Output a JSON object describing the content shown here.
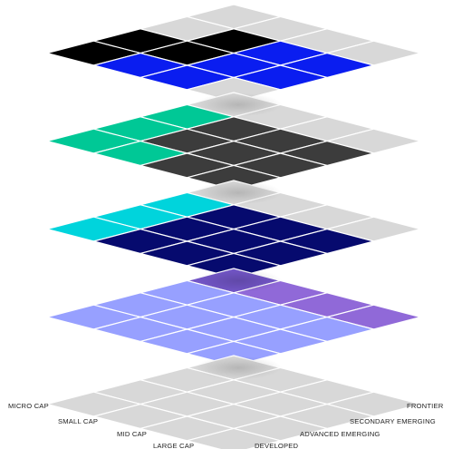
{
  "diagram": {
    "cap_labels": [
      "MICRO CAP",
      "SMALL CAP",
      "MID CAP",
      "LARGE CAP"
    ],
    "market_labels": [
      "DEVELOPED",
      "ADVANCED EMERGING",
      "SECONDARY EMERGING",
      "FRONTIER"
    ]
  },
  "colors": {
    "grey": "#d8d8d8",
    "black": "#000000",
    "blue": "#0a1df0",
    "green": "#00c896",
    "dark_grey": "#3c3c3c",
    "navy": "#060a6e",
    "cyan": "#00d4dc",
    "periwinkle": "#97a0ff",
    "violet": "#7356c8",
    "lavender": "#9069d8",
    "grid_line": "#ffffff"
  },
  "layers": [
    {
      "name": "layer-1",
      "rows": [
        [
          "grey",
          "grey",
          "grey",
          "grey"
        ],
        [
          "grey",
          "black",
          "blue",
          "blue"
        ],
        [
          "black",
          "black",
          "blue",
          "blue"
        ],
        [
          "black",
          "blue",
          "blue",
          "grey"
        ]
      ]
    },
    {
      "name": "layer-2",
      "rows": [
        [
          "grey",
          "grey",
          "grey",
          "grey"
        ],
        [
          "green",
          "dark_grey",
          "dark_grey",
          "dark_grey"
        ],
        [
          "green",
          "dark_grey",
          "dark_grey",
          "dark_grey"
        ],
        [
          "green",
          "green",
          "dark_grey",
          "dark_grey"
        ]
      ]
    },
    {
      "name": "layer-3",
      "rows": [
        [
          "grey",
          "grey",
          "grey",
          "grey"
        ],
        [
          "cyan",
          "navy",
          "navy",
          "navy"
        ],
        [
          "cyan",
          "navy",
          "navy",
          "navy"
        ],
        [
          "cyan",
          "navy",
          "navy",
          "navy"
        ]
      ]
    },
    {
      "name": "layer-4",
      "rows": [
        [
          "violet",
          "lavender",
          "lavender",
          "lavender"
        ],
        [
          "periwinkle",
          "periwinkle",
          "periwinkle",
          "periwinkle"
        ],
        [
          "periwinkle",
          "periwinkle",
          "periwinkle",
          "periwinkle"
        ],
        [
          "periwinkle",
          "periwinkle",
          "periwinkle",
          "periwinkle"
        ]
      ]
    },
    {
      "name": "layer-5",
      "rows": [
        [
          "grey",
          "grey",
          "grey",
          "grey"
        ],
        [
          "grey",
          "grey",
          "grey",
          "grey"
        ],
        [
          "grey",
          "grey",
          "grey",
          "grey"
        ],
        [
          "grey",
          "grey",
          "grey",
          "grey"
        ]
      ]
    }
  ]
}
